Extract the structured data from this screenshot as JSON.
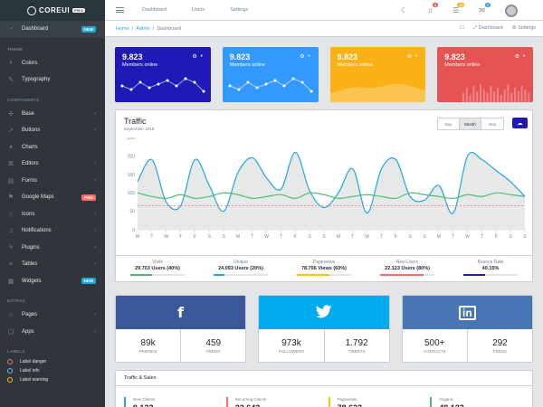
{
  "brand": {
    "name": "COREUI",
    "tag": "PRO"
  },
  "sidebar": {
    "items": [
      {
        "label": "Dashboard",
        "icon": "speedometer-icon",
        "badge": "NEW",
        "active": true
      },
      {
        "section": "THEME"
      },
      {
        "label": "Colors",
        "icon": "drop-icon"
      },
      {
        "label": "Typography",
        "icon": "pencil-icon"
      },
      {
        "section": "COMPONENTS"
      },
      {
        "label": "Base",
        "icon": "puzzle-icon",
        "chevron": true
      },
      {
        "label": "Buttons",
        "icon": "cursor-icon",
        "chevron": true
      },
      {
        "label": "Charts",
        "icon": "pie-chart-icon"
      },
      {
        "label": "Editors",
        "icon": "code-icon",
        "chevron": true
      },
      {
        "label": "Forms",
        "icon": "note-icon",
        "chevron": true
      },
      {
        "label": "Google Maps",
        "icon": "map-icon",
        "badge": "PRO"
      },
      {
        "label": "Icons",
        "icon": "star-icon",
        "chevron": true
      },
      {
        "label": "Notifications",
        "icon": "bell-icon",
        "chevron": true
      },
      {
        "label": "Plugins",
        "icon": "energy-icon",
        "chevron": true
      },
      {
        "label": "Tables",
        "icon": "list-icon",
        "chevron": true
      },
      {
        "label": "Widgets",
        "icon": "calculator-icon",
        "badge": "NEW"
      },
      {
        "section": "EXTRAS"
      },
      {
        "label": "Pages",
        "icon": "star-icon",
        "chevron": true
      },
      {
        "label": "Apps",
        "icon": "layers-icon",
        "chevron": true
      },
      {
        "section": "LABELS"
      }
    ],
    "labels": [
      {
        "label": "Label danger",
        "color": "#f86c6b"
      },
      {
        "label": "Label info",
        "color": "#63c2de"
      },
      {
        "label": "Label warning",
        "color": "#ffc107"
      }
    ]
  },
  "header": {
    "links": [
      "Dashboard",
      "Users",
      "Settings"
    ],
    "badges": {
      "notifications": "5",
      "tasks": "15",
      "messages": "7"
    }
  },
  "breadcrumb": {
    "items": [
      "Home",
      "Admin"
    ],
    "active": "Dashboard",
    "right": [
      "Dashboard",
      "Settings"
    ]
  },
  "stats": [
    {
      "value": "9.823",
      "label": "Members online",
      "color": "#1f1ab5",
      "spark": "line"
    },
    {
      "value": "9.823",
      "label": "Members online",
      "color": "#3399ff",
      "spark": "line"
    },
    {
      "value": "9.823",
      "label": "Members online",
      "color": "#f9b115",
      "spark": "area"
    },
    {
      "value": "9.823",
      "label": "Members online",
      "color": "#e55353",
      "spark": "bars"
    }
  ],
  "traffic": {
    "title": "Traffic",
    "subtitle": "September 2019",
    "range_buttons": [
      "Day",
      "Month",
      "Year"
    ],
    "active_range": "Month"
  },
  "chart_data": {
    "type": "line",
    "categories": [
      "M",
      "T",
      "W",
      "T",
      "F",
      "S",
      "S",
      "M",
      "T",
      "W",
      "T",
      "F",
      "S",
      "S",
      "M",
      "T",
      "W",
      "T",
      "F",
      "S",
      "S",
      "M",
      "T",
      "W",
      "T",
      "F",
      "S",
      "S"
    ],
    "ylim": [
      0,
      250
    ],
    "yticks": [
      0,
      50,
      100,
      150,
      200,
      250
    ],
    "series": [
      {
        "name": "",
        "color": "#20a8d8",
        "fill": "#e4e5e6",
        "values": [
          130,
          190,
          75,
          65,
          190,
          120,
          50,
          155,
          195,
          140,
          110,
          210,
          105,
          60,
          100,
          165,
          45,
          165,
          190,
          90,
          80,
          120,
          45,
          200,
          190,
          160,
          130,
          90
        ]
      },
      {
        "name": "",
        "color": "#4dbd74",
        "values": [
          100,
          90,
          85,
          95,
          85,
          90,
          100,
          95,
          85,
          90,
          95,
          85,
          100,
          95,
          85,
          90,
          95,
          90,
          85,
          100,
          95,
          90,
          85,
          95,
          90,
          100,
          95,
          90
        ]
      },
      {
        "name": "",
        "color": "#f86c6b",
        "dashed": true,
        "values": [
          65,
          65,
          65,
          65,
          65,
          65,
          65,
          65,
          65,
          65,
          65,
          65,
          65,
          65,
          65,
          65,
          65,
          65,
          65,
          65,
          65,
          65,
          65,
          65,
          65,
          65,
          65,
          65
        ]
      }
    ]
  },
  "traffic_footer": [
    {
      "label": "Visits",
      "value": "29.703 Users (40%)",
      "color": "#4dbd74",
      "percent": 40
    },
    {
      "label": "Unique",
      "value": "24.093 Users (20%)",
      "color": "#20a8d8",
      "percent": 20
    },
    {
      "label": "Pageviews",
      "value": "78.706 Views (60%)",
      "color": "#ffc107",
      "percent": 60
    },
    {
      "label": "New Users",
      "value": "22.123 Users (80%)",
      "color": "#f86c6b",
      "percent": 80
    },
    {
      "label": "Bounce Rate",
      "value": "40.15%",
      "color": "#1f1ab5",
      "percent": 40
    }
  ],
  "social": [
    {
      "name": "facebook",
      "color": "#3b5998",
      "icon": "f",
      "stats": [
        {
          "value": "89k",
          "label": "FRIENDS"
        },
        {
          "value": "459",
          "label": "FEEDS"
        }
      ]
    },
    {
      "name": "twitter",
      "color": "#00aced",
      "icon": "twitter-bird-icon",
      "stats": [
        {
          "value": "973k",
          "label": "FOLLOWERS"
        },
        {
          "value": "1.792",
          "label": "TWEETS"
        }
      ]
    },
    {
      "name": "linkedin",
      "color": "#4875b4",
      "icon": "in",
      "stats": [
        {
          "value": "500+",
          "label": "CONTACTS"
        },
        {
          "value": "292",
          "label": "FEEDS"
        }
      ]
    }
  ],
  "sales": {
    "title": "Traffic & Sales",
    "items": [
      {
        "label": "New Clients",
        "value": "9.123",
        "color": "#20a8d8"
      },
      {
        "label": "Recurring Clients",
        "value": "22.643",
        "color": "#f86c6b"
      },
      {
        "label": "Pageviews",
        "value": "78.623",
        "color": "#ffc107"
      },
      {
        "label": "Organic",
        "value": "49.123",
        "color": "#4dbd74"
      }
    ]
  }
}
